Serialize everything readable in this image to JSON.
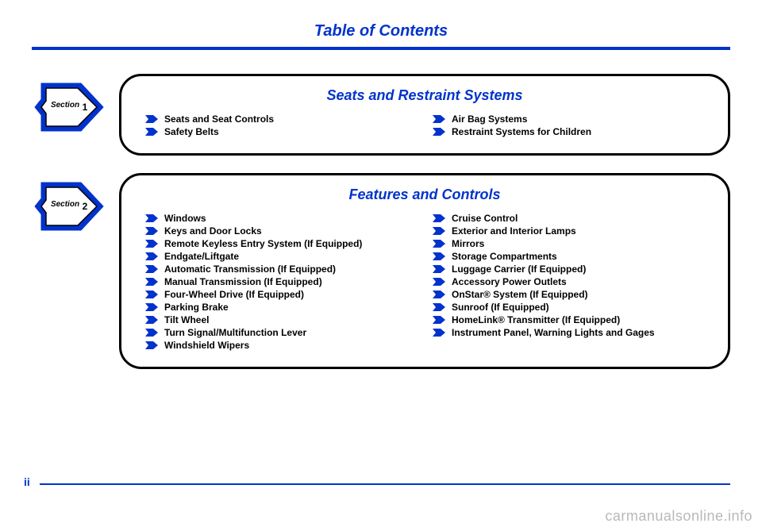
{
  "page_title": "Table of Contents",
  "page_number": "ii",
  "watermark": "carmanualsonline.info",
  "colors": {
    "accent": "#0033cc",
    "text": "#000000",
    "watermark": "#b8b8b8"
  },
  "sections": [
    {
      "badge_label": "Section",
      "badge_num": "1",
      "title": "Seats and Restraint Systems",
      "left": [
        "Seats and Seat Controls",
        "Safety Belts"
      ],
      "right": [
        "Air Bag Systems",
        "Restraint Systems for Children"
      ]
    },
    {
      "badge_label": "Section",
      "badge_num": "2",
      "title": "Features and Controls",
      "left": [
        "Windows",
        "Keys and Door Locks",
        "Remote Keyless Entry System (If Equipped)",
        "Endgate/Liftgate",
        "Automatic Transmission (If Equipped)",
        "Manual Transmission (If Equipped)",
        "Four-Wheel Drive (If Equipped)",
        "Parking Brake",
        "Tilt Wheel",
        "Turn Signal/Multifunction Lever",
        "Windshield Wipers"
      ],
      "right": [
        "Cruise Control",
        "Exterior and Interior Lamps",
        "Mirrors",
        "Storage Compartments",
        "Luggage Carrier (If Equipped)",
        "Accessory Power Outlets",
        "OnStar®  System (If Equipped)",
        "Sunroof (If Equipped)",
        "HomeLink®  Transmitter (If Equipped)",
        "Instrument Panel, Warning Lights and Gages"
      ]
    }
  ]
}
